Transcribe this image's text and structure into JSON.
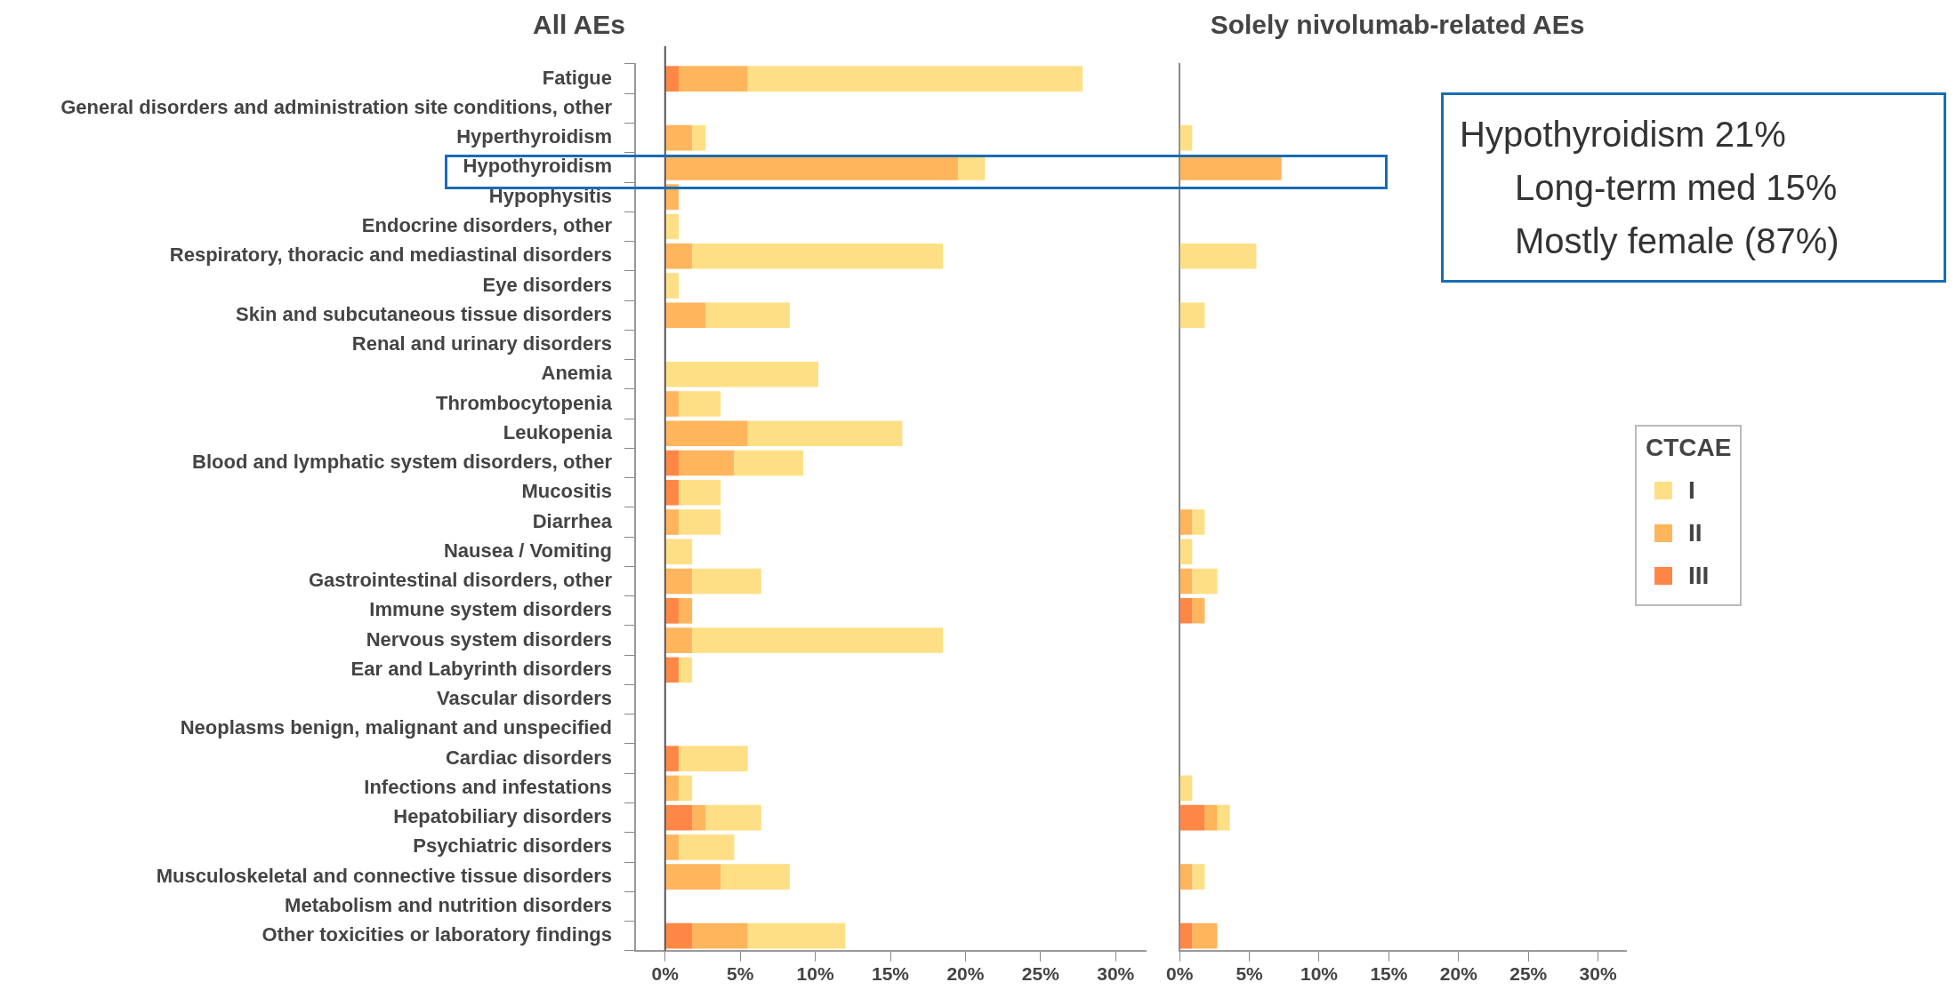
{
  "chart_data": [
    {
      "type": "bar",
      "orientation": "horizontal",
      "stacked": true,
      "title": "All AEs",
      "categories": [
        "Fatigue",
        "General disorders and administration site conditions, other",
        "Hyperthyroidism",
        "Hypothyroidism",
        "Hypophysitis",
        "Endocrine disorders, other",
        "Respiratory, thoracic and mediastinal disorders",
        "Eye disorders",
        "Skin and subcutaneous tissue disorders",
        "Renal and urinary disorders",
        "Anemia",
        "Thrombocytopenia",
        "Leukopenia",
        "Blood and lymphatic system disorders, other",
        "Mucositis",
        "Diarrhea",
        "Nausea / Vomiting",
        "Gastrointestinal disorders, other",
        "Immune system disorders",
        "Nervous system disorders",
        "Ear and Labyrinth disorders",
        "Vascular disorders",
        "Neoplasms benign, malignant and unspecified",
        "Cardiac disorders",
        "Infections and infestations",
        "Hepatobiliary disorders",
        "Psychiatric disorders",
        "Musculoskeletal and connective tissue disorders",
        "Metabolism and nutrition disorders",
        "Other toxicities or laboratory findings"
      ],
      "series": [
        {
          "color": "#ff8745",
          "values": [
            0.9,
            0,
            0,
            0,
            0,
            0,
            0,
            0,
            0,
            0,
            0,
            0,
            0,
            0.9,
            0.9,
            0,
            0,
            0,
            0.9,
            0,
            0.9,
            0,
            0,
            0.9,
            0,
            1.8,
            0,
            0,
            0,
            1.8
          ]
        },
        {
          "color": "#ffb55c",
          "values": [
            4.6,
            0,
            1.8,
            19.5,
            0.9,
            0,
            1.8,
            0,
            2.7,
            0,
            0,
            0.9,
            5.5,
            3.7,
            0,
            0.9,
            0,
            1.8,
            0.9,
            1.8,
            0,
            0,
            0,
            0,
            0.9,
            0.9,
            0.9,
            3.7,
            0,
            3.7
          ]
        },
        {
          "color": "#fedf85",
          "values": [
            22.3,
            0,
            0.9,
            1.8,
            0,
            0.9,
            16.7,
            0.9,
            5.6,
            0,
            10.2,
            2.8,
            10.3,
            4.6,
            2.8,
            2.8,
            1.8,
            4.6,
            0,
            16.7,
            0.9,
            0,
            0,
            4.6,
            0.9,
            3.7,
            3.7,
            4.6,
            0,
            6.5
          ]
        }
      ],
      "xlim": [
        -2,
        32
      ],
      "xticks": [
        {
          "value": 0,
          "label": "0%"
        },
        {
          "value": 5,
          "label": "5%"
        },
        {
          "value": 10,
          "label": "10%"
        },
        {
          "value": 15,
          "label": "15%"
        },
        {
          "value": 20,
          "label": "20%"
        },
        {
          "value": 25,
          "label": "25%"
        },
        {
          "value": 30,
          "label": "30%"
        }
      ],
      "ref_lines": [
        {
          "axis": "x",
          "value": 0,
          "color": "#555555"
        }
      ]
    },
    {
      "type": "bar",
      "orientation": "horizontal",
      "stacked": true,
      "title": "Solely nivolumab-related AEs",
      "tick_labels": "x",
      "legend": "right",
      "legend_title": "CTCAE",
      "categories": [
        null,
        null,
        null,
        null,
        null,
        null,
        null,
        null,
        null,
        null,
        null,
        null,
        null,
        null,
        null,
        null,
        null,
        null,
        null,
        null,
        null,
        null,
        null,
        null,
        null,
        null,
        null,
        null,
        null,
        null
      ],
      "series": [
        {
          "name": "III",
          "color": "#ff8745",
          "values": [
            0,
            0,
            0,
            0,
            0,
            0,
            0,
            0,
            0,
            0,
            0,
            0,
            0,
            0,
            0,
            0,
            0,
            0,
            0.9,
            0,
            0,
            0,
            0,
            0,
            0,
            1.8,
            0,
            0,
            0,
            0.9
          ]
        },
        {
          "name": "II",
          "color": "#ffb55c",
          "values": [
            0,
            0,
            0,
            7.3,
            0,
            0,
            0,
            0,
            0,
            0,
            0,
            0,
            0,
            0,
            0,
            0.9,
            0,
            0.9,
            0.9,
            0,
            0,
            0,
            0,
            0,
            0,
            0.9,
            0,
            0.9,
            0,
            1.8
          ]
        },
        {
          "name": "I",
          "color": "#fedf85",
          "values": [
            0,
            0,
            0.9,
            0,
            0,
            0,
            5.5,
            0,
            1.8,
            0,
            0,
            0,
            0,
            0,
            0,
            0.9,
            0.9,
            1.8,
            0,
            0,
            0,
            0,
            0,
            0,
            0.9,
            0.9,
            0,
            0.9,
            0,
            0
          ]
        }
      ],
      "xlim": [
        0,
        32
      ],
      "xticks": [
        {
          "value": 0,
          "label": "0%"
        },
        {
          "value": 5,
          "label": "5%"
        },
        {
          "value": 10,
          "label": "10%"
        },
        {
          "value": 15,
          "label": "15%"
        },
        {
          "value": 20,
          "label": "20%"
        },
        {
          "value": 25,
          "label": "25%"
        },
        {
          "value": 30,
          "label": "30%"
        }
      ],
      "annotations": [
        "Hypothyroidism 21%",
        "Long-term med 15%",
        "Mostly female (87%)"
      ]
    }
  ]
}
